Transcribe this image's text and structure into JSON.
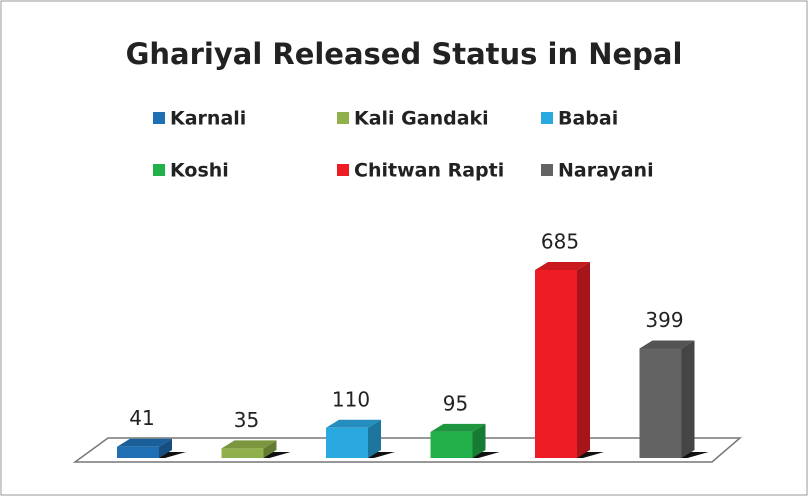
{
  "chart_data": {
    "type": "bar3d",
    "title": "Ghariyal Released Status in Nepal",
    "categories": [
      "Karnali",
      "Kali Gandaki",
      "Babai",
      "Koshi",
      "Chitwan Rapti",
      "Narayani"
    ],
    "values": [
      41,
      35,
      110,
      95,
      685,
      399
    ],
    "colors": [
      "#1f6fb5",
      "#8fb04a",
      "#2aa8e0",
      "#22b04a",
      "#ee1c25",
      "#636363"
    ],
    "legend": "top"
  }
}
